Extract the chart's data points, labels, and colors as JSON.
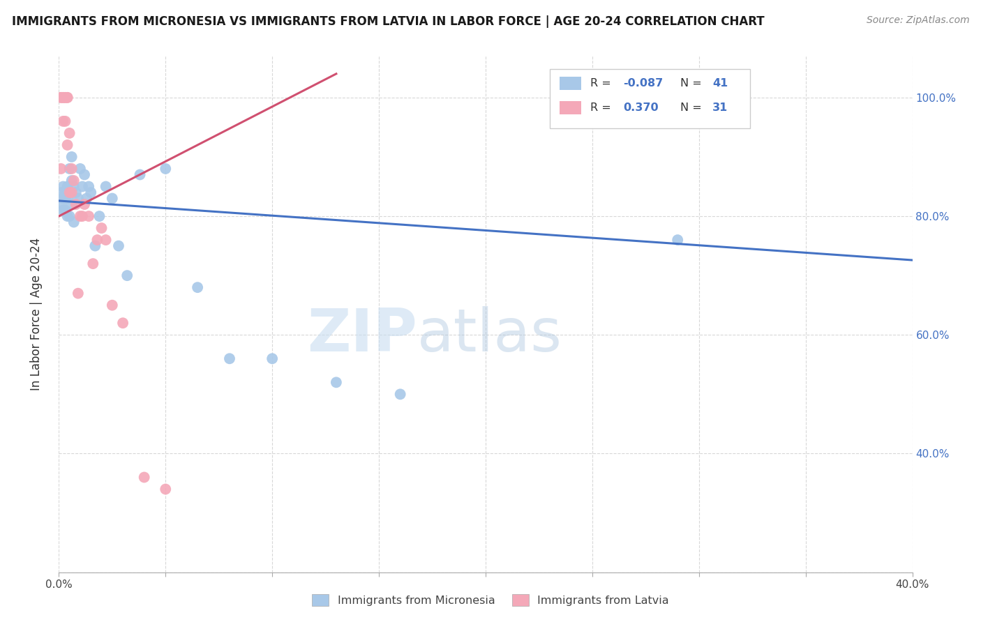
{
  "title": "IMMIGRANTS FROM MICRONESIA VS IMMIGRANTS FROM LATVIA IN LABOR FORCE | AGE 20-24 CORRELATION CHART",
  "source": "Source: ZipAtlas.com",
  "ylabel": "In Labor Force | Age 20-24",
  "xlim": [
    0.0,
    0.4
  ],
  "ylim": [
    0.2,
    1.07
  ],
  "xticks": [
    0.0,
    0.05,
    0.1,
    0.15,
    0.2,
    0.25,
    0.3,
    0.35,
    0.4
  ],
  "xticklabels": [
    "0.0%",
    "",
    "",
    "",
    "",
    "",
    "",
    "",
    "40.0%"
  ],
  "yticks": [
    0.2,
    0.4,
    0.6,
    0.8,
    1.0
  ],
  "yticklabels_right": [
    "",
    "40.0%",
    "60.0%",
    "80.0%",
    "100.0%"
  ],
  "micronesia_color": "#a8c8e8",
  "latvia_color": "#f4a8b8",
  "micronesia_line_color": "#4472c4",
  "latvia_line_color": "#d05070",
  "legend_r_micronesia": "-0.087",
  "legend_n_micronesia": "41",
  "legend_r_latvia": "0.370",
  "legend_n_latvia": "31",
  "watermark_zip": "ZIP",
  "watermark_atlas": "atlas",
  "micronesia_x": [
    0.001,
    0.001,
    0.002,
    0.002,
    0.002,
    0.003,
    0.003,
    0.003,
    0.004,
    0.004,
    0.004,
    0.005,
    0.005,
    0.005,
    0.006,
    0.006,
    0.006,
    0.007,
    0.007,
    0.008,
    0.009,
    0.01,
    0.011,
    0.012,
    0.013,
    0.014,
    0.015,
    0.017,
    0.019,
    0.022,
    0.025,
    0.028,
    0.032,
    0.038,
    0.05,
    0.065,
    0.08,
    0.1,
    0.13,
    0.16,
    0.29
  ],
  "micronesia_y": [
    0.84,
    0.82,
    0.85,
    0.83,
    0.81,
    0.84,
    0.83,
    0.81,
    0.85,
    0.83,
    0.8,
    0.88,
    0.84,
    0.8,
    0.9,
    0.86,
    0.82,
    0.85,
    0.79,
    0.84,
    0.83,
    0.88,
    0.85,
    0.87,
    0.83,
    0.85,
    0.84,
    0.75,
    0.8,
    0.85,
    0.83,
    0.75,
    0.7,
    0.87,
    0.88,
    0.68,
    0.56,
    0.56,
    0.52,
    0.5,
    0.76
  ],
  "latvia_x": [
    0.001,
    0.001,
    0.001,
    0.002,
    0.002,
    0.002,
    0.003,
    0.003,
    0.003,
    0.004,
    0.004,
    0.004,
    0.005,
    0.005,
    0.006,
    0.006,
    0.007,
    0.008,
    0.009,
    0.01,
    0.011,
    0.012,
    0.014,
    0.016,
    0.018,
    0.02,
    0.022,
    0.025,
    0.03,
    0.04,
    0.05
  ],
  "latvia_y": [
    1.0,
    1.0,
    0.88,
    1.0,
    1.0,
    0.96,
    1.0,
    1.0,
    0.96,
    1.0,
    1.0,
    0.92,
    0.94,
    0.84,
    0.88,
    0.84,
    0.86,
    0.82,
    0.67,
    0.8,
    0.8,
    0.82,
    0.8,
    0.72,
    0.76,
    0.78,
    0.76,
    0.65,
    0.62,
    0.36,
    0.34
  ],
  "mic_line_x0": 0.0,
  "mic_line_x1": 0.4,
  "mic_line_y0": 0.826,
  "mic_line_y1": 0.726,
  "lat_line_x0": 0.0,
  "lat_line_x1": 0.13,
  "lat_line_y0": 0.8,
  "lat_line_y1": 1.04
}
